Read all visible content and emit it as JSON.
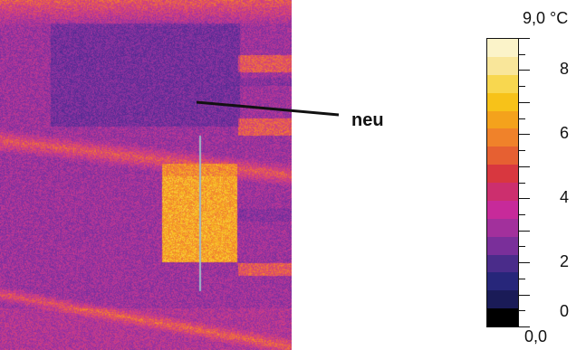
{
  "annotation": {
    "label": "neu"
  },
  "scale": {
    "max_label": "9,0 °C",
    "min_label": "0,0",
    "ticks": [
      "8",
      "6",
      "4",
      "2",
      "0"
    ],
    "palette": [
      "#fbf3c9",
      "#f9e69a",
      "#f8d74f",
      "#f7c219",
      "#f4a21c",
      "#f0822a",
      "#e66032",
      "#d8373f",
      "#cc2f6e",
      "#c72a9a",
      "#a2309c",
      "#7a2f9a",
      "#4a2c8a",
      "#27267a",
      "#1a1b57",
      "#000000"
    ]
  },
  "image": {
    "type": "thermogram"
  }
}
